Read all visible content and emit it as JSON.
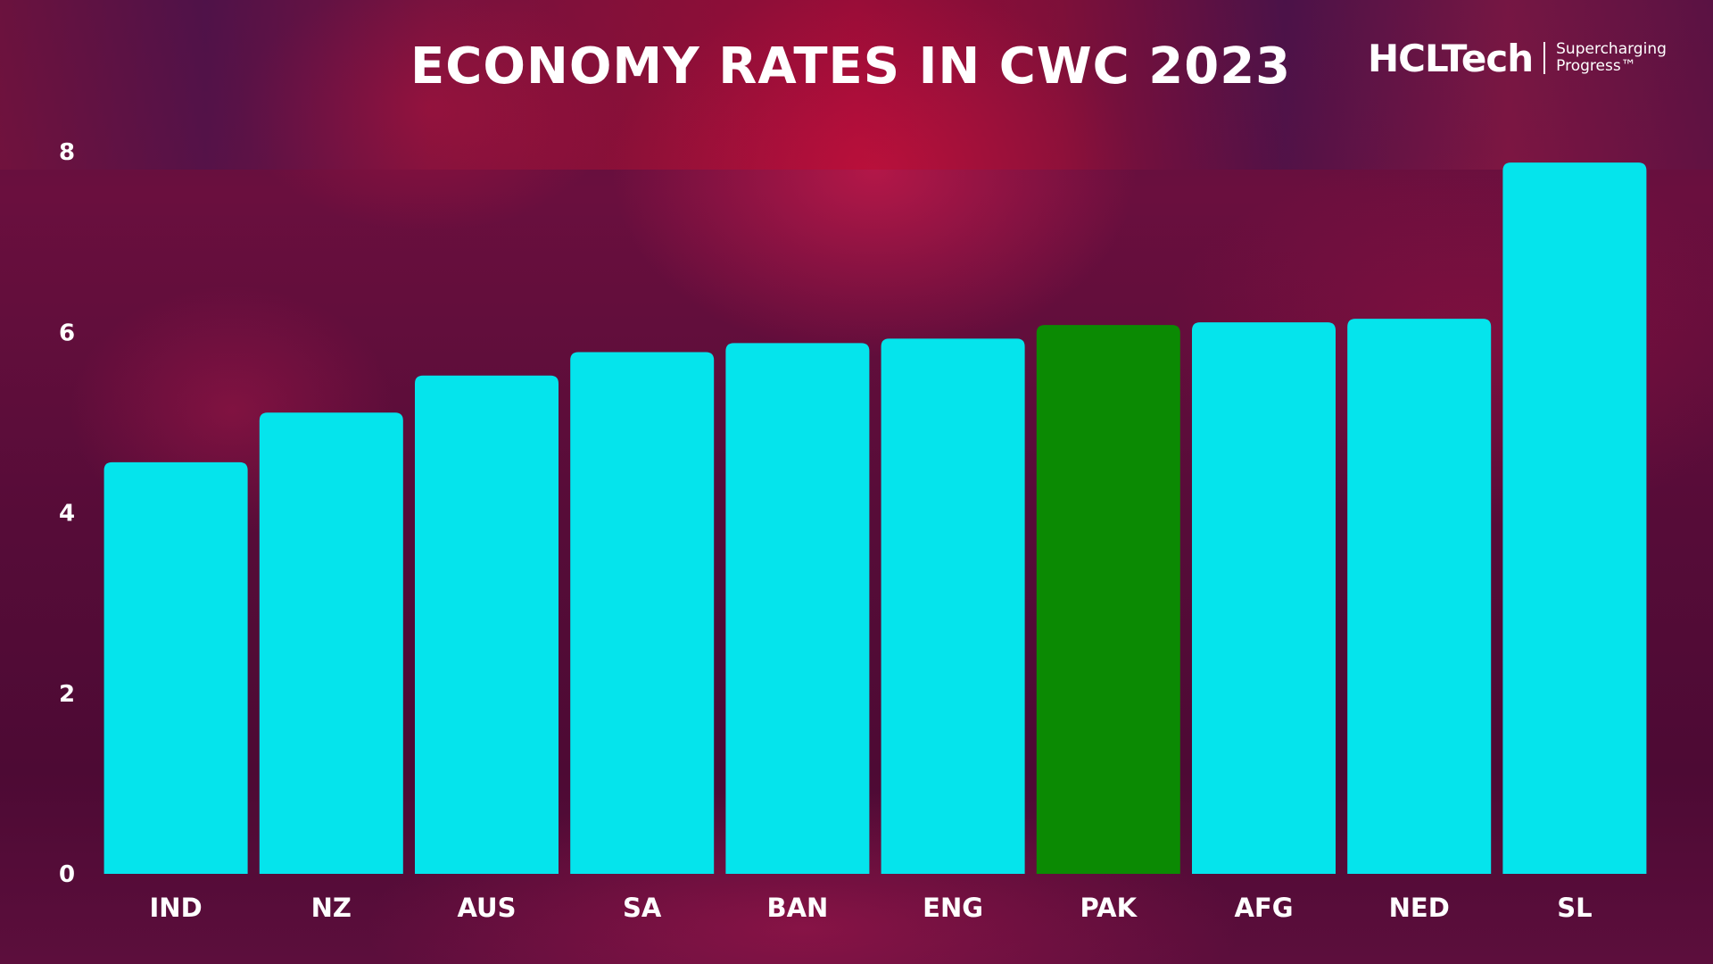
{
  "colors": {
    "bar_default": "#05e4ec",
    "bar_highlight": "#0b8a03",
    "text": "#ffffff"
  },
  "brand": {
    "name": "HCLTech",
    "tagline_line1": "Supercharging",
    "tagline_line2": "Progress™"
  },
  "chart_data": {
    "type": "bar",
    "title": "ECONOMY RATES IN CWC 2023",
    "xlabel": "",
    "ylabel": "",
    "categories": [
      "IND",
      "NZ",
      "AUS",
      "SA",
      "BAN",
      "ENG",
      "PAK",
      "AFG",
      "NED",
      "SL"
    ],
    "values": [
      4.56,
      5.11,
      5.52,
      5.78,
      5.88,
      5.93,
      6.08,
      6.11,
      6.15,
      7.88
    ],
    "highlight": "PAK",
    "ylim": [
      0,
      8
    ],
    "yticks": [
      0,
      2,
      4,
      6,
      8
    ],
    "grid": false,
    "legend": "none"
  }
}
